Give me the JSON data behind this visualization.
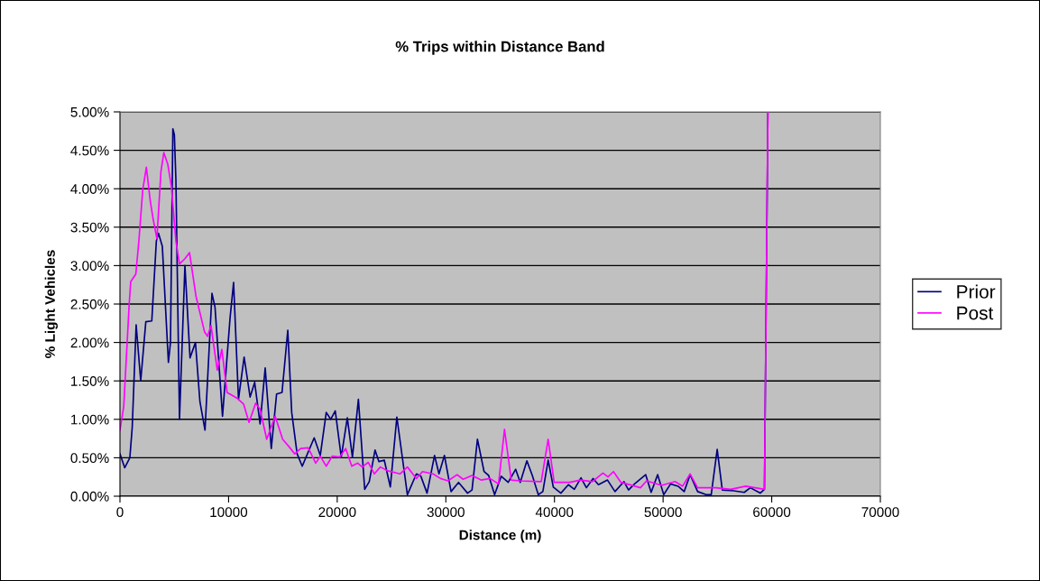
{
  "chart_data": {
    "type": "line",
    "title": "% Trips within Distance Band",
    "xlabel": "Distance (m)",
    "ylabel": "% Light Vehicles",
    "xlim": [
      0,
      70000
    ],
    "xticks": [
      0,
      10000,
      20000,
      30000,
      40000,
      50000,
      60000,
      70000
    ],
    "ylim": [
      0,
      5
    ],
    "yticks": [
      {
        "value": 0,
        "label": "0.00%"
      },
      {
        "value": 0.5,
        "label": "0.50%"
      },
      {
        "value": 1,
        "label": "1.00%"
      },
      {
        "value": 1.5,
        "label": "1.50%"
      },
      {
        "value": 2,
        "label": "2.00%"
      },
      {
        "value": 2.5,
        "label": "2.50%"
      },
      {
        "value": 3,
        "label": "3.00%"
      },
      {
        "value": 3.5,
        "label": "3.50%"
      },
      {
        "value": 4,
        "label": "4.00%"
      },
      {
        "value": 4.5,
        "label": "4.50%"
      },
      {
        "value": 5,
        "label": "5.00%"
      }
    ],
    "grid": "y",
    "legend": "right",
    "marker": "none",
    "line_style": "solid",
    "series": [
      {
        "name": "Prior",
        "color": "#000080",
        "x": [
          0,
          440,
          910,
          1130,
          1490,
          1910,
          2380,
          2930,
          3350,
          3550,
          3900,
          4460,
          4650,
          4870,
          5010,
          5150,
          5480,
          5980,
          6450,
          6950,
          7360,
          7830,
          8470,
          8750,
          9440,
          10130,
          10460,
          10910,
          11430,
          11980,
          12400,
          12900,
          13370,
          13930,
          14420,
          14920,
          15450,
          15810,
          16310,
          16780,
          17880,
          18440,
          18990,
          19400,
          19820,
          20370,
          20930,
          21400,
          21950,
          22530,
          22950,
          23480,
          23840,
          24330,
          24890,
          25490,
          26460,
          27290,
          27700,
          28270,
          28960,
          29370,
          29870,
          30480,
          31170,
          32000,
          32410,
          32910,
          33520,
          33940,
          34490,
          35100,
          35740,
          36430,
          36850,
          37460,
          37960,
          38510,
          38930,
          39420,
          39890,
          40590,
          41280,
          41830,
          42440,
          42940,
          43550,
          44050,
          44880,
          45570,
          46400,
          46820,
          47370,
          48400,
          48900,
          49500,
          50060,
          50690,
          51380,
          51940,
          52490,
          53180,
          53960,
          54430,
          54980,
          55450,
          56500,
          57470,
          58030,
          58940,
          59330,
          59650
        ],
        "values": [
          0.55,
          0.37,
          0.5,
          0.9,
          2.23,
          1.5,
          2.27,
          2.28,
          3.32,
          3.42,
          3.25,
          1.74,
          2.0,
          4.78,
          4.7,
          4.11,
          1.0,
          3.0,
          1.8,
          2.0,
          1.23,
          0.86,
          2.64,
          2.46,
          1.04,
          2.31,
          2.78,
          1.26,
          1.81,
          1.29,
          1.48,
          0.94,
          1.67,
          0.62,
          1.33,
          1.35,
          2.16,
          1.09,
          0.55,
          0.39,
          0.76,
          0.53,
          1.09,
          1.0,
          1.11,
          0.51,
          1.02,
          0.51,
          1.26,
          0.09,
          0.19,
          0.6,
          0.45,
          0.47,
          0.12,
          1.03,
          0.02,
          0.29,
          0.26,
          0.04,
          0.53,
          0.29,
          0.53,
          0.06,
          0.18,
          0.04,
          0.08,
          0.74,
          0.32,
          0.27,
          0.02,
          0.26,
          0.18,
          0.35,
          0.18,
          0.46,
          0.27,
          0.02,
          0.06,
          0.47,
          0.12,
          0.04,
          0.15,
          0.09,
          0.24,
          0.11,
          0.23,
          0.15,
          0.21,
          0.06,
          0.19,
          0.08,
          0.16,
          0.28,
          0.05,
          0.28,
          0.02,
          0.16,
          0.13,
          0.06,
          0.28,
          0.06,
          0.02,
          0.02,
          0.61,
          0.08,
          0.07,
          0.05,
          0.11,
          0.04,
          0.09,
          5.0
        ]
      },
      {
        "name": "Post",
        "color": "#ff00ff",
        "x": [
          0,
          350,
          850,
          990,
          1460,
          1740,
          2100,
          2430,
          2790,
          3060,
          3400,
          3770,
          4040,
          4400,
          4730,
          5150,
          5480,
          5980,
          6400,
          7000,
          7780,
          8060,
          8380,
          8960,
          9380,
          9860,
          10830,
          11380,
          11880,
          12490,
          12900,
          13510,
          14290,
          14980,
          15530,
          16090,
          16640,
          17330,
          18020,
          18440,
          18990,
          19540,
          20230,
          20780,
          21340,
          21890,
          22300,
          22860,
          23420,
          23970,
          24670,
          25780,
          26460,
          27290,
          27850,
          28820,
          29510,
          30200,
          31030,
          31590,
          32410,
          33240,
          34070,
          34850,
          35400,
          36020,
          36850,
          38780,
          39420,
          39970,
          41410,
          42380,
          43490,
          44460,
          44930,
          45430,
          46120,
          47920,
          48480,
          49860,
          51100,
          51800,
          52490,
          53180,
          54840,
          56230,
          57610,
          59330,
          59650
        ],
        "values": [
          0.86,
          1.17,
          2.5,
          2.79,
          2.89,
          3.32,
          3.99,
          4.28,
          3.84,
          3.6,
          3.35,
          4.22,
          4.47,
          4.32,
          4.03,
          3.32,
          3.02,
          3.09,
          3.17,
          2.6,
          2.14,
          2.08,
          2.22,
          1.64,
          1.91,
          1.35,
          1.27,
          1.2,
          0.96,
          1.21,
          1.13,
          0.74,
          1.04,
          0.74,
          0.65,
          0.55,
          0.62,
          0.63,
          0.43,
          0.52,
          0.39,
          0.52,
          0.51,
          0.62,
          0.39,
          0.43,
          0.38,
          0.44,
          0.29,
          0.38,
          0.33,
          0.29,
          0.38,
          0.23,
          0.32,
          0.29,
          0.23,
          0.2,
          0.28,
          0.22,
          0.27,
          0.21,
          0.23,
          0.16,
          0.87,
          0.21,
          0.2,
          0.19,
          0.74,
          0.18,
          0.18,
          0.21,
          0.19,
          0.3,
          0.25,
          0.32,
          0.18,
          0.11,
          0.2,
          0.14,
          0.19,
          0.13,
          0.29,
          0.11,
          0.11,
          0.09,
          0.13,
          0.09,
          5.0
        ]
      }
    ]
  }
}
